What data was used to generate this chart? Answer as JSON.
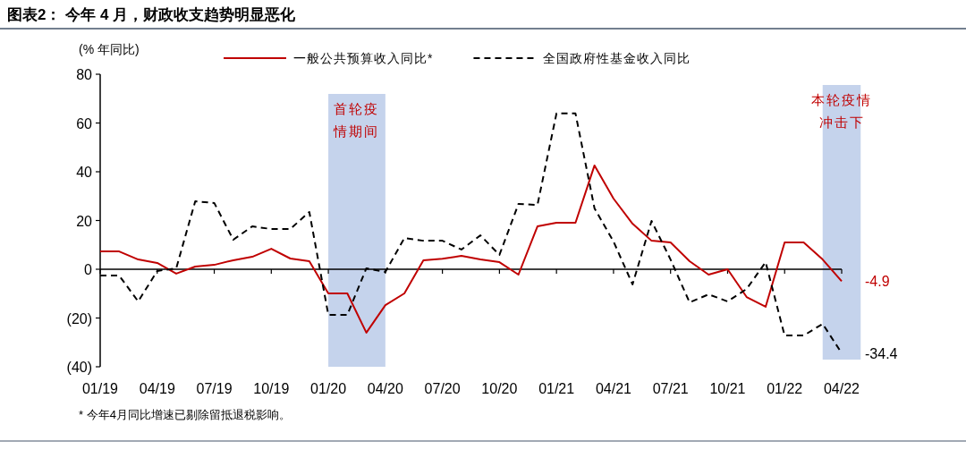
{
  "chart_data": {
    "type": "line",
    "title": "图表2：  今年 4 月，财政收支趋势明显恶化",
    "ylabel": "(% 年同比)",
    "x": [
      "2019-01",
      "2019-02",
      "2019-03",
      "2019-04",
      "2019-05",
      "2019-06",
      "2019-07",
      "2019-08",
      "2019-09",
      "2019-10",
      "2019-11",
      "2019-12",
      "2020-01",
      "2020-02",
      "2020-03",
      "2020-04",
      "2020-05",
      "2020-06",
      "2020-07",
      "2020-08",
      "2020-09",
      "2020-10",
      "2020-11",
      "2020-12",
      "2021-01",
      "2021-02",
      "2021-03",
      "2021-04",
      "2021-05",
      "2021-06",
      "2021-07",
      "2021-08",
      "2021-09",
      "2021-10",
      "2021-11",
      "2021-12",
      "2022-01",
      "2022-02",
      "2022-03",
      "2022-04"
    ],
    "series": [
      {
        "name": "一般公共预算收入同比*",
        "color": "#c00000",
        "line_style": "solid",
        "values": [
          7.3,
          7.3,
          4.0,
          2.6,
          -1.8,
          1.1,
          1.8,
          3.7,
          5.1,
          8.4,
          4.4,
          3.3,
          -9.9,
          -9.9,
          -26,
          -14.7,
          -9.9,
          3.7,
          4.3,
          5.5,
          4.0,
          2.9,
          -2.2,
          17.6,
          19.1,
          19.1,
          42.6,
          29,
          18.7,
          11.7,
          11,
          3.3,
          -2.2,
          0,
          -11.4,
          -15.4,
          11,
          11,
          4.0,
          -4.9
        ],
        "value_labels": [
          null,
          null,
          null,
          null,
          null,
          null,
          null,
          null,
          null,
          null,
          null,
          null,
          null,
          null,
          null,
          null,
          null,
          null,
          null,
          null,
          null,
          null,
          null,
          null,
          null,
          null,
          null,
          null,
          null,
          null,
          null,
          null,
          null,
          null,
          null,
          null,
          null,
          null,
          null,
          "-4.9"
        ]
      },
      {
        "name": "全国政府性基金收入同比",
        "color": "#000000",
        "line_style": "dashed",
        "values": [
          -2.6,
          -2.6,
          -13.2,
          -0.7,
          0.4,
          27.9,
          27.2,
          12.1,
          17.6,
          16.5,
          16.5,
          23.5,
          -18.7,
          -18.7,
          0.4,
          -1.1,
          12.8,
          11.7,
          11.7,
          8.1,
          13.9,
          5.9,
          26.8,
          26.4,
          63.9,
          63.9,
          25,
          11.4,
          -6.2,
          19.8,
          4,
          -13.6,
          -10.3,
          -13.2,
          -8.1,
          2.9,
          -27.2,
          -27.2,
          -22.4,
          -34.4
        ],
        "value_labels": [
          null,
          null,
          null,
          null,
          null,
          null,
          null,
          null,
          null,
          null,
          null,
          null,
          null,
          null,
          null,
          null,
          null,
          null,
          null,
          null,
          null,
          null,
          null,
          null,
          null,
          null,
          null,
          null,
          null,
          null,
          null,
          null,
          null,
          null,
          null,
          null,
          null,
          null,
          null,
          "-34.4"
        ]
      }
    ],
    "xlim": [
      "2019-01",
      "2022-04"
    ],
    "xticks": [
      {
        "value": "2019-01",
        "label": "01/19"
      },
      {
        "value": "2019-04",
        "label": "04/19"
      },
      {
        "value": "2019-07",
        "label": "07/19"
      },
      {
        "value": "2019-10",
        "label": "10/19"
      },
      {
        "value": "2020-01",
        "label": "01/20"
      },
      {
        "value": "2020-04",
        "label": "04/20"
      },
      {
        "value": "2020-07",
        "label": "07/20"
      },
      {
        "value": "2020-10",
        "label": "10/20"
      },
      {
        "value": "2021-01",
        "label": "01/21"
      },
      {
        "value": "2021-04",
        "label": "04/21"
      },
      {
        "value": "2021-07",
        "label": "07/21"
      },
      {
        "value": "2021-10",
        "label": "10/21"
      },
      {
        "value": "2022-01",
        "label": "01/22"
      },
      {
        "value": "2022-04",
        "label": "04/22"
      }
    ],
    "ylim": [
      -40,
      80
    ],
    "yticks": [
      {
        "value": -40,
        "label": "(40)"
      },
      {
        "value": -20,
        "label": "(20)"
      },
      0,
      20,
      40,
      60,
      80
    ],
    "bands": [
      {
        "axis": "x",
        "from": "2020-01",
        "to": "2020-04",
        "label": "首轮疫情期间",
        "color": "#c5d3ec"
      },
      {
        "axis": "x",
        "from": "2022-03",
        "to": "2022-05",
        "label": "本轮疫情冲击下",
        "color": "#c5d3ec"
      }
    ],
    "legend": "top",
    "ref_lines": [
      {
        "axis": "y",
        "value": 0,
        "color": "#000000"
      }
    ],
    "annotations": [
      "* 今年4月同比增速已剔除留抵退税影响。"
    ]
  }
}
